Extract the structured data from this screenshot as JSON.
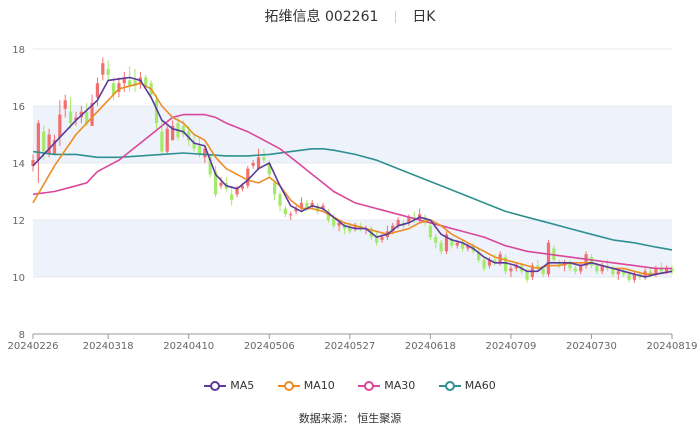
{
  "header": {
    "stock_name": "拓维信息 002261",
    "period": "日K"
  },
  "source": "数据来源： 恒生聚源",
  "chart_data": {
    "type": "candlestick",
    "ylim": [
      8,
      18
    ],
    "y_ticks": [
      8,
      10,
      12,
      14,
      16,
      18
    ],
    "x_ticks": [
      "20240226",
      "20240318",
      "20240410",
      "20240506",
      "20240527",
      "20240618",
      "20240709",
      "20240730",
      "20240819"
    ],
    "x_tick_index": [
      0,
      14,
      29,
      44,
      59,
      74,
      89,
      104,
      119
    ],
    "n_days": 120,
    "up_color": "#f1706f",
    "down_color": "#a4e96b",
    "band_color": "#eef2fb",
    "legend": [
      "MA5",
      "MA10",
      "MA30",
      "MA60"
    ],
    "ma_colors": {
      "MA5": "#5b3a9b",
      "MA10": "#ee8c24",
      "MA30": "#d8489a",
      "MA60": "#2e9190"
    },
    "ohlc": [
      [
        13.9,
        14.3,
        13.7,
        14.1
      ],
      [
        14.1,
        15.5,
        13.3,
        15.4
      ],
      [
        15.1,
        15.3,
        14.1,
        14.4
      ],
      [
        14.3,
        15.2,
        14.2,
        15.0
      ],
      [
        14.3,
        15.0,
        14.3,
        14.8
      ],
      [
        14.9,
        16.2,
        14.6,
        15.7
      ],
      [
        15.9,
        16.4,
        15.6,
        16.2
      ],
      [
        15.8,
        16.3,
        15.2,
        15.4
      ],
      [
        15.5,
        15.8,
        15.3,
        15.6
      ],
      [
        15.6,
        16.0,
        15.4,
        15.8
      ],
      [
        15.8,
        16.1,
        15.3,
        15.4
      ],
      [
        15.3,
        16.4,
        15.3,
        16.1
      ],
      [
        16.3,
        17.0,
        16.0,
        16.8
      ],
      [
        17.1,
        17.7,
        16.9,
        17.5
      ],
      [
        17.3,
        17.6,
        16.9,
        17.1
      ],
      [
        16.8,
        17.0,
        16.2,
        16.4
      ],
      [
        16.5,
        17.0,
        16.3,
        16.8
      ],
      [
        16.8,
        17.2,
        16.5,
        17.0
      ],
      [
        16.9,
        17.4,
        16.5,
        16.7
      ],
      [
        16.9,
        17.3,
        16.5,
        16.7
      ],
      [
        16.8,
        17.2,
        16.6,
        17.0
      ],
      [
        17.0,
        17.1,
        16.6,
        16.7
      ],
      [
        16.8,
        16.9,
        16.3,
        16.4
      ],
      [
        16.2,
        16.4,
        15.2,
        15.4
      ],
      [
        15.1,
        15.5,
        14.3,
        14.4
      ],
      [
        14.4,
        15.3,
        14.3,
        15.2
      ],
      [
        14.8,
        15.5,
        14.8,
        15.3
      ],
      [
        15.4,
        15.6,
        14.8,
        14.9
      ],
      [
        15.3,
        15.5,
        14.9,
        15.0
      ],
      [
        15.1,
        15.3,
        14.6,
        14.8
      ],
      [
        14.7,
        15.0,
        14.4,
        14.5
      ],
      [
        14.6,
        14.9,
        14.2,
        14.3
      ],
      [
        14.2,
        14.6,
        14.0,
        14.5
      ],
      [
        14.2,
        14.3,
        13.5,
        13.6
      ],
      [
        13.7,
        13.9,
        12.8,
        12.9
      ],
      [
        13.2,
        13.5,
        13.1,
        13.3
      ],
      [
        13.3,
        13.5,
        13.0,
        13.1
      ],
      [
        12.9,
        13.2,
        12.5,
        12.7
      ],
      [
        12.9,
        13.2,
        12.8,
        13.1
      ],
      [
        13.1,
        13.3,
        13.0,
        13.2
      ],
      [
        13.2,
        13.9,
        13.1,
        13.8
      ],
      [
        13.9,
        14.1,
        13.8,
        14.0
      ],
      [
        13.8,
        14.5,
        13.8,
        14.2
      ],
      [
        14.2,
        14.5,
        14.0,
        14.1
      ],
      [
        14.0,
        14.1,
        13.5,
        13.6
      ],
      [
        13.3,
        13.4,
        12.7,
        12.9
      ],
      [
        12.9,
        13.0,
        12.3,
        12.5
      ],
      [
        12.4,
        12.5,
        12.1,
        12.2
      ],
      [
        12.2,
        12.3,
        12.0,
        12.2
      ],
      [
        12.3,
        12.5,
        12.2,
        12.4
      ],
      [
        12.4,
        12.8,
        12.3,
        12.6
      ],
      [
        12.6,
        12.7,
        12.3,
        12.4
      ],
      [
        12.5,
        12.7,
        12.4,
        12.6
      ],
      [
        12.5,
        12.6,
        12.2,
        12.3
      ],
      [
        12.4,
        12.6,
        12.3,
        12.5
      ],
      [
        12.3,
        12.4,
        11.9,
        12.0
      ],
      [
        12.1,
        12.2,
        11.7,
        11.8
      ],
      [
        11.8,
        12.0,
        11.6,
        11.9
      ],
      [
        11.8,
        11.9,
        11.5,
        11.7
      ],
      [
        11.8,
        11.9,
        11.5,
        11.6
      ],
      [
        11.7,
        11.9,
        11.6,
        11.8
      ],
      [
        11.8,
        11.9,
        11.6,
        11.7
      ],
      [
        11.7,
        11.8,
        11.5,
        11.7
      ],
      [
        11.7,
        11.8,
        11.3,
        11.4
      ],
      [
        11.4,
        11.6,
        11.1,
        11.2
      ],
      [
        11.3,
        11.5,
        11.2,
        11.4
      ],
      [
        11.4,
        11.8,
        11.3,
        11.6
      ],
      [
        11.6,
        11.9,
        11.5,
        11.8
      ],
      [
        11.8,
        12.1,
        11.7,
        12.0
      ],
      [
        11.9,
        12.0,
        11.7,
        11.8
      ],
      [
        11.9,
        12.2,
        11.8,
        12.1
      ],
      [
        12.1,
        12.3,
        11.9,
        12.0
      ],
      [
        12.0,
        12.4,
        11.9,
        12.2
      ],
      [
        12.1,
        12.2,
        11.8,
        11.9
      ],
      [
        11.8,
        11.9,
        11.3,
        11.4
      ],
      [
        11.4,
        11.5,
        11.0,
        11.2
      ],
      [
        11.2,
        11.3,
        10.8,
        10.9
      ],
      [
        10.9,
        11.6,
        10.8,
        11.5
      ],
      [
        11.3,
        11.4,
        11.0,
        11.1
      ],
      [
        11.1,
        11.3,
        11.0,
        11.2
      ],
      [
        11.2,
        11.3,
        10.9,
        11.0
      ],
      [
        11.0,
        11.2,
        10.9,
        11.1
      ],
      [
        11.1,
        11.2,
        10.8,
        10.9
      ],
      [
        10.9,
        11.0,
        10.5,
        10.6
      ],
      [
        10.6,
        10.7,
        10.2,
        10.3
      ],
      [
        10.4,
        10.7,
        10.3,
        10.6
      ],
      [
        10.6,
        10.8,
        10.4,
        10.5
      ],
      [
        10.5,
        10.9,
        10.4,
        10.8
      ],
      [
        10.7,
        10.8,
        10.1,
        10.2
      ],
      [
        10.2,
        10.4,
        10.0,
        10.3
      ],
      [
        10.3,
        10.5,
        10.2,
        10.4
      ],
      [
        10.4,
        10.5,
        10.1,
        10.2
      ],
      [
        10.2,
        10.3,
        9.8,
        9.9
      ],
      [
        10.0,
        10.5,
        9.9,
        10.4
      ],
      [
        10.4,
        10.6,
        10.2,
        10.3
      ],
      [
        10.3,
        10.4,
        10.0,
        10.1
      ],
      [
        10.1,
        11.3,
        10.0,
        11.2
      ],
      [
        11.0,
        11.1,
        10.5,
        10.6
      ],
      [
        10.5,
        10.6,
        10.3,
        10.4
      ],
      [
        10.4,
        10.6,
        10.2,
        10.5
      ],
      [
        10.5,
        10.6,
        10.2,
        10.3
      ],
      [
        10.3,
        10.4,
        10.1,
        10.2
      ],
      [
        10.2,
        10.5,
        10.1,
        10.4
      ],
      [
        10.4,
        10.9,
        10.3,
        10.8
      ],
      [
        10.7,
        10.8,
        10.3,
        10.4
      ],
      [
        10.4,
        10.5,
        10.1,
        10.2
      ],
      [
        10.2,
        10.5,
        10.1,
        10.4
      ],
      [
        10.4,
        10.6,
        10.2,
        10.3
      ],
      [
        10.3,
        10.4,
        10.0,
        10.1
      ],
      [
        10.1,
        10.3,
        9.9,
        10.2
      ],
      [
        10.2,
        10.3,
        10.0,
        10.1
      ],
      [
        10.1,
        10.2,
        9.8,
        9.9
      ],
      [
        9.9,
        10.2,
        9.8,
        10.1
      ],
      [
        10.1,
        10.2,
        9.9,
        10.0
      ],
      [
        10.0,
        10.3,
        9.9,
        10.2
      ],
      [
        10.2,
        10.3,
        10.0,
        10.1
      ],
      [
        10.1,
        10.4,
        10.0,
        10.3
      ],
      [
        10.3,
        10.5,
        10.1,
        10.2
      ],
      [
        10.2,
        10.4,
        10.1,
        10.3
      ],
      [
        10.3,
        10.4,
        10.1,
        10.2
      ]
    ],
    "ma": {
      "MA5": [
        [
          0,
          13.9
        ],
        [
          4,
          14.7
        ],
        [
          8,
          15.5
        ],
        [
          12,
          16.2
        ],
        [
          14,
          16.9
        ],
        [
          18,
          17.0
        ],
        [
          20,
          16.9
        ],
        [
          22,
          16.3
        ],
        [
          24,
          15.5
        ],
        [
          26,
          15.2
        ],
        [
          28,
          15.1
        ],
        [
          30,
          14.7
        ],
        [
          32,
          14.6
        ],
        [
          34,
          13.6
        ],
        [
          36,
          13.2
        ],
        [
          38,
          13.1
        ],
        [
          40,
          13.4
        ],
        [
          42,
          13.8
        ],
        [
          44,
          14.0
        ],
        [
          46,
          13.2
        ],
        [
          48,
          12.5
        ],
        [
          50,
          12.3
        ],
        [
          52,
          12.5
        ],
        [
          54,
          12.4
        ],
        [
          56,
          12.1
        ],
        [
          58,
          11.8
        ],
        [
          60,
          11.7
        ],
        [
          62,
          11.7
        ],
        [
          64,
          11.4
        ],
        [
          66,
          11.5
        ],
        [
          68,
          11.8
        ],
        [
          70,
          11.9
        ],
        [
          72,
          12.1
        ],
        [
          74,
          12.0
        ],
        [
          76,
          11.5
        ],
        [
          78,
          11.3
        ],
        [
          80,
          11.2
        ],
        [
          82,
          11.0
        ],
        [
          84,
          10.7
        ],
        [
          86,
          10.5
        ],
        [
          88,
          10.5
        ],
        [
          90,
          10.4
        ],
        [
          92,
          10.2
        ],
        [
          94,
          10.2
        ],
        [
          96,
          10.5
        ],
        [
          98,
          10.5
        ],
        [
          100,
          10.5
        ],
        [
          102,
          10.4
        ],
        [
          104,
          10.5
        ],
        [
          106,
          10.4
        ],
        [
          108,
          10.3
        ],
        [
          110,
          10.2
        ],
        [
          112,
          10.1
        ],
        [
          114,
          10.0
        ],
        [
          116,
          10.1
        ],
        [
          119,
          10.2
        ]
      ],
      "MA10": [
        [
          0,
          12.6
        ],
        [
          4,
          13.9
        ],
        [
          8,
          15.0
        ],
        [
          12,
          15.8
        ],
        [
          16,
          16.6
        ],
        [
          20,
          16.8
        ],
        [
          22,
          16.6
        ],
        [
          24,
          16.0
        ],
        [
          26,
          15.6
        ],
        [
          28,
          15.4
        ],
        [
          30,
          15.0
        ],
        [
          32,
          14.8
        ],
        [
          34,
          14.2
        ],
        [
          36,
          13.8
        ],
        [
          38,
          13.6
        ],
        [
          40,
          13.4
        ],
        [
          42,
          13.3
        ],
        [
          44,
          13.5
        ],
        [
          46,
          13.2
        ],
        [
          48,
          12.7
        ],
        [
          50,
          12.4
        ],
        [
          52,
          12.4
        ],
        [
          54,
          12.3
        ],
        [
          56,
          12.1
        ],
        [
          58,
          11.9
        ],
        [
          60,
          11.8
        ],
        [
          62,
          11.7
        ],
        [
          64,
          11.6
        ],
        [
          66,
          11.5
        ],
        [
          68,
          11.6
        ],
        [
          70,
          11.7
        ],
        [
          72,
          11.9
        ],
        [
          74,
          12.0
        ],
        [
          76,
          11.8
        ],
        [
          78,
          11.5
        ],
        [
          80,
          11.3
        ],
        [
          82,
          11.1
        ],
        [
          84,
          10.9
        ],
        [
          86,
          10.7
        ],
        [
          88,
          10.6
        ],
        [
          90,
          10.5
        ],
        [
          92,
          10.4
        ],
        [
          94,
          10.3
        ],
        [
          96,
          10.4
        ],
        [
          98,
          10.4
        ],
        [
          100,
          10.5
        ],
        [
          102,
          10.5
        ],
        [
          104,
          10.5
        ],
        [
          106,
          10.4
        ],
        [
          108,
          10.3
        ],
        [
          110,
          10.3
        ],
        [
          112,
          10.2
        ],
        [
          114,
          10.1
        ],
        [
          116,
          10.1
        ],
        [
          119,
          10.2
        ]
      ],
      "MA30": [
        [
          0,
          12.9
        ],
        [
          4,
          13.0
        ],
        [
          8,
          13.2
        ],
        [
          10,
          13.3
        ],
        [
          12,
          13.7
        ],
        [
          16,
          14.1
        ],
        [
          20,
          14.7
        ],
        [
          24,
          15.3
        ],
        [
          26,
          15.6
        ],
        [
          28,
          15.7
        ],
        [
          32,
          15.7
        ],
        [
          34,
          15.6
        ],
        [
          36,
          15.4
        ],
        [
          40,
          15.1
        ],
        [
          42,
          14.9
        ],
        [
          44,
          14.7
        ],
        [
          46,
          14.5
        ],
        [
          48,
          14.2
        ],
        [
          50,
          13.9
        ],
        [
          52,
          13.6
        ],
        [
          54,
          13.3
        ],
        [
          56,
          13.0
        ],
        [
          58,
          12.8
        ],
        [
          60,
          12.6
        ],
        [
          64,
          12.4
        ],
        [
          68,
          12.2
        ],
        [
          72,
          12.0
        ],
        [
          76,
          11.8
        ],
        [
          80,
          11.6
        ],
        [
          84,
          11.4
        ],
        [
          88,
          11.1
        ],
        [
          92,
          10.9
        ],
        [
          96,
          10.8
        ],
        [
          100,
          10.7
        ],
        [
          104,
          10.6
        ],
        [
          108,
          10.5
        ],
        [
          112,
          10.4
        ],
        [
          116,
          10.3
        ],
        [
          119,
          10.3
        ]
      ],
      "MA60": [
        [
          0,
          14.4
        ],
        [
          4,
          14.3
        ],
        [
          8,
          14.3
        ],
        [
          12,
          14.2
        ],
        [
          16,
          14.2
        ],
        [
          20,
          14.25
        ],
        [
          24,
          14.3
        ],
        [
          28,
          14.35
        ],
        [
          32,
          14.3
        ],
        [
          36,
          14.25
        ],
        [
          40,
          14.25
        ],
        [
          44,
          14.3
        ],
        [
          48,
          14.4
        ],
        [
          52,
          14.5
        ],
        [
          54,
          14.5
        ],
        [
          56,
          14.45
        ],
        [
          60,
          14.3
        ],
        [
          64,
          14.1
        ],
        [
          68,
          13.8
        ],
        [
          72,
          13.5
        ],
        [
          76,
          13.2
        ],
        [
          80,
          12.9
        ],
        [
          84,
          12.6
        ],
        [
          88,
          12.3
        ],
        [
          92,
          12.1
        ],
        [
          96,
          11.9
        ],
        [
          100,
          11.7
        ],
        [
          104,
          11.5
        ],
        [
          108,
          11.3
        ],
        [
          112,
          11.2
        ],
        [
          116,
          11.05
        ],
        [
          119,
          10.95
        ]
      ]
    }
  }
}
